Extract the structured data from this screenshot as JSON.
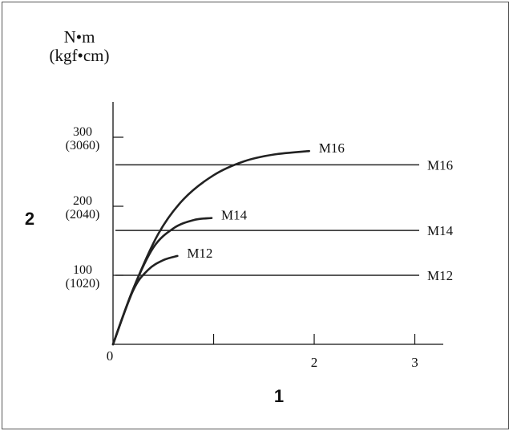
{
  "chart_data": {
    "type": "line",
    "title": "",
    "ylabel_unit_line1": "N•m",
    "ylabel_unit_line2": "(kgf•cm)",
    "xlabel_marker": "1",
    "ylabel_marker": "2",
    "xlim": [
      0,
      3.3
    ],
    "ylim": [
      0,
      360
    ],
    "x_ticks": [
      {
        "value": 1,
        "label": ""
      },
      {
        "value": 2,
        "label": "2"
      },
      {
        "value": 3,
        "label": "3"
      }
    ],
    "origin_label": "0",
    "y_ticks": [
      {
        "value": 100,
        "label": "100",
        "sublabel": "(1020)"
      },
      {
        "value": 200,
        "label": "200",
        "sublabel": "(2040)"
      },
      {
        "value": 300,
        "label": "300",
        "sublabel": "(3060)"
      }
    ],
    "series": [
      {
        "name": "M16",
        "x": [
          0,
          0.2,
          0.45,
          0.7,
          1.0,
          1.3,
          1.6,
          1.95
        ],
        "y": [
          0,
          80,
          160,
          210,
          245,
          265,
          275,
          280
        ]
      },
      {
        "name": "M14",
        "x": [
          0,
          0.2,
          0.4,
          0.6,
          0.8,
          0.98
        ],
        "y": [
          0,
          80,
          140,
          168,
          180,
          183
        ]
      },
      {
        "name": "M12",
        "x": [
          0,
          0.2,
          0.35,
          0.5,
          0.64
        ],
        "y": [
          0,
          78,
          108,
          122,
          128
        ]
      }
    ],
    "reference_lines": [
      {
        "name": "M16",
        "y": 260
      },
      {
        "name": "M14",
        "y": 165
      },
      {
        "name": "M12",
        "y": 100
      }
    ],
    "grid": false
  }
}
